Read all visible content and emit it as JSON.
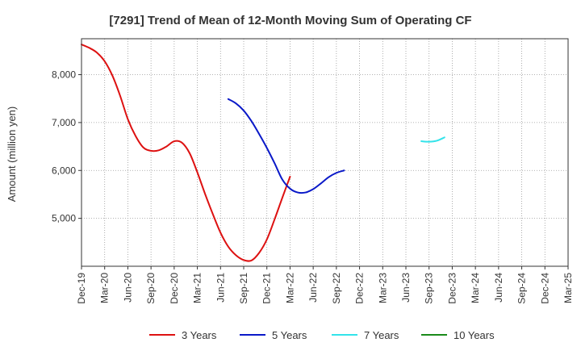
{
  "chart_data": {
    "type": "line",
    "title": "[7291]  Trend of Mean of 12-Month Moving Sum of Operating CF",
    "xlabel": "",
    "ylabel": "Amount (million yen)",
    "ylim": [
      4000,
      8750
    ],
    "yticks": [
      5000,
      6000,
      7000,
      8000
    ],
    "ytick_labels": [
      "5,000",
      "6,000",
      "7,000",
      "8,000"
    ],
    "grid": true,
    "legend_position": "bottom",
    "x_labels": [
      "Dec-19",
      "Mar-20",
      "Jun-20",
      "Sep-20",
      "Dec-20",
      "Mar-21",
      "Jun-21",
      "Sep-21",
      "Dec-21",
      "Mar-22",
      "Jun-22",
      "Sep-22",
      "Dec-22",
      "Mar-23",
      "Jun-23",
      "Sep-23",
      "Dec-23",
      "Mar-24",
      "Jun-24",
      "Sep-24",
      "Dec-24",
      "Mar-25"
    ],
    "series": [
      {
        "name": "3 Years",
        "color": "#dd1111",
        "start_index": 0,
        "values": [
          8630,
          8560,
          8460,
          8280,
          7980,
          7560,
          7070,
          6720,
          6480,
          6410,
          6420,
          6500,
          6610,
          6580,
          6360,
          5960,
          5510,
          5090,
          4700,
          4410,
          4230,
          4130,
          4120,
          4280,
          4560,
          4980,
          5430,
          5870
        ]
      },
      {
        "name": "5 Years",
        "color": "#0a19c8",
        "start_index": 19,
        "values": [
          7490,
          7400,
          7250,
          7030,
          6760,
          6470,
          6150,
          5810,
          5620,
          5540,
          5540,
          5610,
          5730,
          5860,
          5950,
          6000
        ]
      },
      {
        "name": "7 Years",
        "color": "#33e3ea",
        "start_index": 44,
        "values": [
          6610,
          6600,
          6620,
          6690
        ]
      },
      {
        "name": "10 Years",
        "color": "#1a8a1a",
        "start_index": 0,
        "values": []
      }
    ]
  }
}
